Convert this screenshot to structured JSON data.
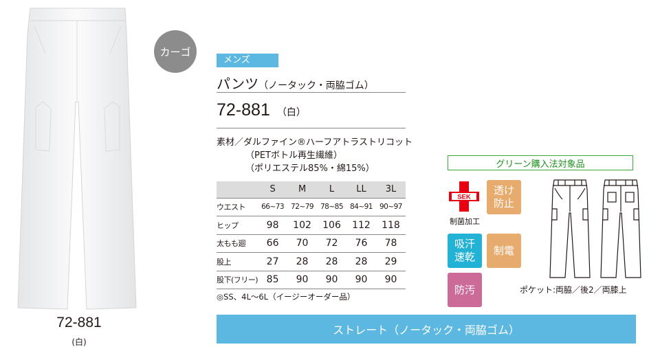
{
  "photo": {
    "code": "72-881",
    "color": "(白)"
  },
  "badge": {
    "cargo": "カーゴ"
  },
  "gender_tag": "メンズ",
  "product": {
    "name": "パンツ",
    "name_paren": "（ノータック・両脇ゴム）",
    "code": "72-881",
    "color": "（白）"
  },
  "material": {
    "line1": "素材／ダルファイン®ハーフアトラストリコット",
    "line2": "（PETボトル再生繊維）",
    "line3": "（ポリエステル85%・綿15%）"
  },
  "size_table": {
    "headers": [
      "",
      "S",
      "M",
      "L",
      "LL",
      "3L"
    ],
    "rows": [
      {
        "label": "ウエスト",
        "values": [
          "66~73",
          "72~79",
          "78~85",
          "84~91",
          "90~97"
        ]
      },
      {
        "label": "ヒップ",
        "values": [
          "98",
          "102",
          "106",
          "112",
          "118"
        ]
      },
      {
        "label": "太もも廻",
        "values": [
          "66",
          "70",
          "72",
          "76",
          "78"
        ]
      },
      {
        "label": "股上",
        "values": [
          "27",
          "28",
          "28",
          "28",
          "29"
        ]
      },
      {
        "label": "股下(フリー)",
        "values": [
          "85",
          "90",
          "90",
          "90",
          "90"
        ]
      }
    ]
  },
  "other_sizes": "◎SS、4L～6L（イージーオーダー品）",
  "green_label": "グリーン購入法対象品",
  "sek": {
    "mark": "SEK",
    "caption": "制菌加工"
  },
  "features": {
    "see_through": "透け防止",
    "quick_dry": "吸汗速乾",
    "anti_static": "制電",
    "stain": "防汚"
  },
  "pocket_note": "ポケット:両脇／後2／両膝上",
  "banner": "ストレート（ノータック・両脇ゴム）",
  "colors": {
    "accent_blue": "#5cb8e0",
    "green": "#3aa63a",
    "orange": "#e8ab6e",
    "cyan": "#22b2d6",
    "pink": "#cc6a98",
    "sek_red": "#e60012",
    "badge_gray": "#8c8c8c"
  }
}
